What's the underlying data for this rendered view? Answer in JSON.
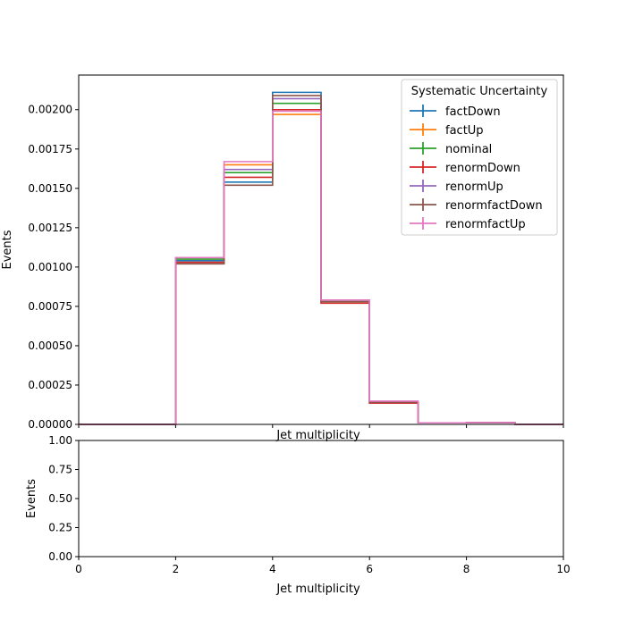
{
  "chart_data": [
    {
      "type": "line",
      "drawstyle": "steps",
      "xlabel": "Jet multiplicity",
      "ylabel": "Events",
      "xlim": [
        0,
        10
      ],
      "ylim": [
        0,
        0.00222
      ],
      "y_ticks": [
        "0.00000",
        "0.00025",
        "0.00050",
        "0.00075",
        "0.00100",
        "0.00125",
        "0.00150",
        "0.00175",
        "0.00200"
      ],
      "legend_title": "Systematic Uncertainty",
      "legend_position": "top-right",
      "bin_edges": [
        0,
        1,
        2,
        3,
        4,
        5,
        6,
        7,
        8,
        9,
        10
      ],
      "series": [
        {
          "name": "factDown",
          "color": "#1f77b4",
          "values": [
            0,
            0,
            0.00104,
            0.00154,
            0.00211,
            0.00079,
            0.000145,
            1e-05,
            1.2e-05,
            0
          ]
        },
        {
          "name": "factUp",
          "color": "#ff7f0e",
          "values": [
            0,
            0,
            0.00106,
            0.00165,
            0.00197,
            0.00078,
            0.00014,
            1e-05,
            1.2e-05,
            0
          ]
        },
        {
          "name": "nominal",
          "color": "#2ca02c",
          "values": [
            0,
            0,
            0.00105,
            0.0016,
            0.00204,
            0.00078,
            0.00014,
            1e-05,
            1.2e-05,
            0
          ]
        },
        {
          "name": "renormDown",
          "color": "#d62728",
          "values": [
            0,
            0,
            0.00103,
            0.00157,
            0.002,
            0.00077,
            0.000135,
            1e-05,
            1.2e-05,
            0
          ]
        },
        {
          "name": "renormUp",
          "color": "#9467bd",
          "values": [
            0,
            0,
            0.00106,
            0.00162,
            0.00207,
            0.00079,
            0.000145,
            1e-05,
            1.2e-05,
            0
          ]
        },
        {
          "name": "renormfactDown",
          "color": "#8c564b",
          "values": [
            0,
            0,
            0.00102,
            0.00152,
            0.00209,
            0.00078,
            0.00014,
            1e-05,
            1.2e-05,
            0
          ]
        },
        {
          "name": "renormfactUp",
          "color": "#e377c2",
          "values": [
            0,
            0,
            0.00106,
            0.00167,
            0.00199,
            0.00079,
            0.000148,
            1e-05,
            1.2e-05,
            0
          ]
        }
      ]
    },
    {
      "type": "line",
      "xlabel": "Jet multiplicity",
      "ylabel": "Events",
      "xlim": [
        0,
        10
      ],
      "ylim": [
        0,
        1
      ],
      "x_ticks": [
        "0",
        "2",
        "4",
        "6",
        "8",
        "10"
      ],
      "y_ticks": [
        "0.00",
        "0.25",
        "0.50",
        "0.75",
        "1.00"
      ],
      "series": []
    }
  ]
}
